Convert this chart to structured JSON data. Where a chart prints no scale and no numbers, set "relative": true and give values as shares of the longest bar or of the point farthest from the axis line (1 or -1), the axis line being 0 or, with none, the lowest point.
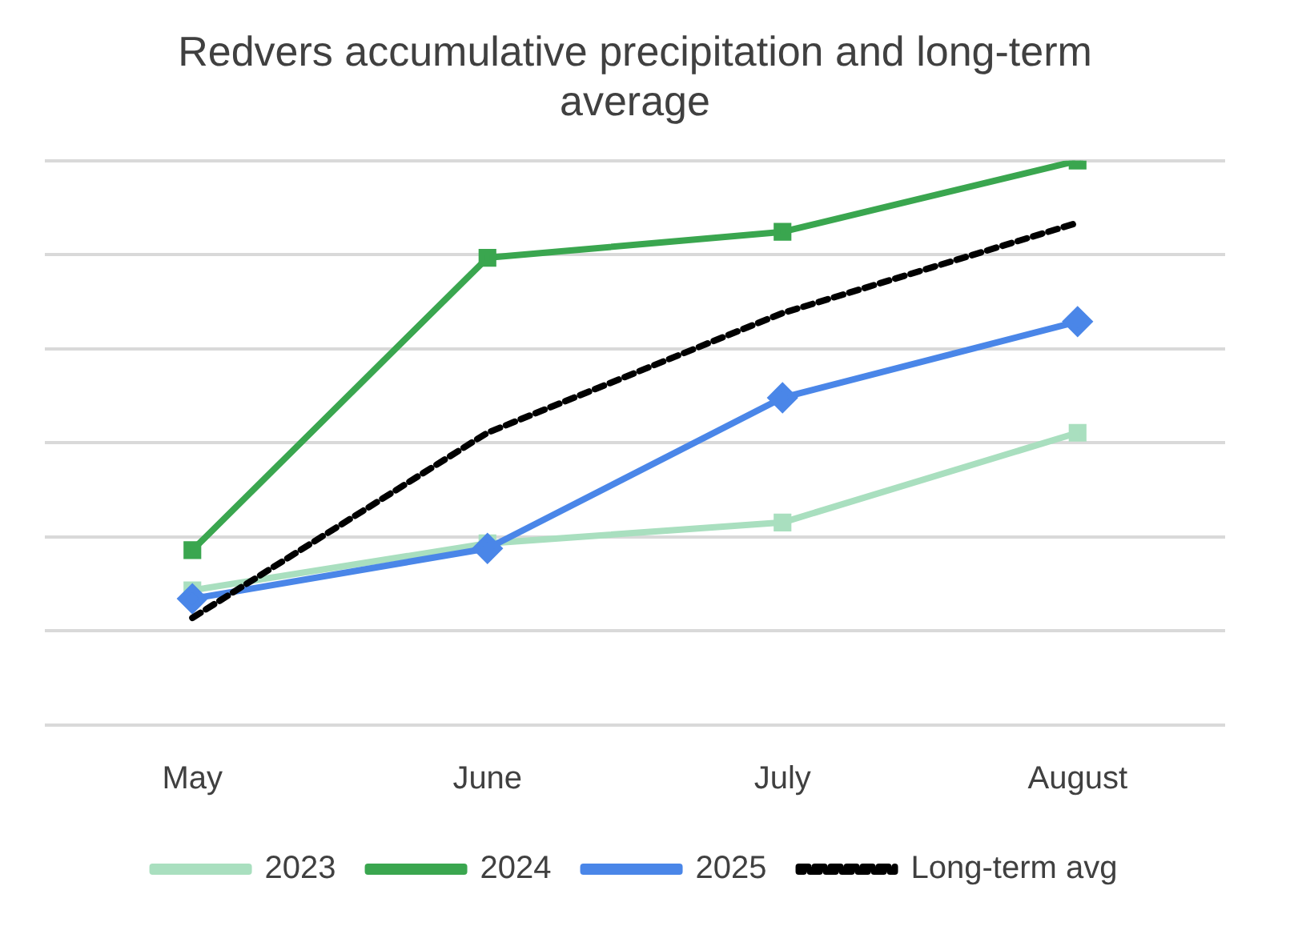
{
  "chart_data": {
    "type": "line",
    "title": "Redvers accumulative precipitation and long-term average",
    "categories": [
      "May",
      "June",
      "July",
      "August"
    ],
    "relative": true,
    "grid": "y",
    "legend": "bottom",
    "series": [
      {
        "name": "2023",
        "color": "#a9dfbf",
        "values": [
          0.239,
          0.322,
          0.359,
          0.518
        ],
        "marker": "square",
        "line_style": "solid"
      },
      {
        "name": "2024",
        "color": "#3aa64f",
        "values": [
          0.31,
          0.828,
          0.874,
          1
        ],
        "marker": "square",
        "line_style": "solid"
      },
      {
        "name": "2025",
        "color": "#4a86e8",
        "values": [
          0.224,
          0.313,
          0.58,
          0.715
        ],
        "marker": "diamond",
        "line_style": "solid"
      },
      {
        "name": "Long-term avg",
        "color": "#000000",
        "values": [
          0.19,
          0.518,
          0.73,
          0.89
        ],
        "marker": "none",
        "line_style": "dashed"
      }
    ]
  }
}
